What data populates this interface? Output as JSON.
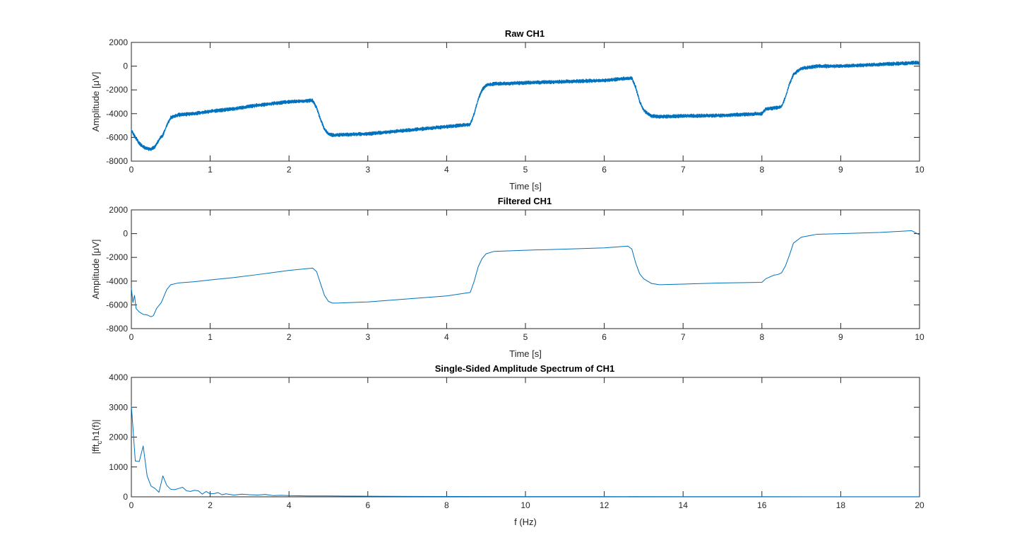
{
  "figure": {
    "background": "#ffffff",
    "line_color": "#0072bd",
    "axis_color": "#262626"
  },
  "chart_data": [
    {
      "type": "line",
      "title": "Raw CH1",
      "xlabel": "Time [s]",
      "ylabel": "Amplitude [μV]",
      "xlim": [
        0,
        10
      ],
      "ylim": [
        -8000,
        2000
      ],
      "xticks": [
        0,
        1,
        2,
        3,
        4,
        5,
        6,
        7,
        8,
        9,
        10
      ],
      "yticks": [
        2000,
        0,
        -2000,
        -4000,
        -6000,
        -8000
      ],
      "grid": false,
      "noise_amplitude": 160,
      "series": [
        {
          "x": [
            0,
            0.05,
            0.1,
            0.15,
            0.2,
            0.25,
            0.3,
            0.35,
            0.4,
            0.45,
            0.5,
            0.6,
            0.8,
            1.0,
            1.3,
            1.6,
            2.0,
            2.3,
            2.35,
            2.4,
            2.45,
            2.5,
            2.55,
            2.6,
            3.0,
            3.5,
            4.0,
            4.3,
            4.35,
            4.4,
            4.45,
            4.5,
            4.6,
            5.0,
            5.5,
            6.0,
            6.35,
            6.4,
            6.45,
            6.5,
            6.55,
            6.6,
            6.7,
            7.0,
            7.5,
            8.0,
            8.05,
            8.2,
            8.25,
            8.3,
            8.35,
            8.4,
            8.5,
            8.7,
            9.0,
            9.5,
            10.0
          ],
          "y": [
            -5400,
            -6000,
            -6500,
            -6800,
            -6950,
            -7000,
            -6800,
            -6200,
            -5800,
            -5000,
            -4300,
            -4100,
            -4000,
            -3800,
            -3600,
            -3300,
            -3000,
            -2900,
            -3500,
            -4500,
            -5300,
            -5700,
            -5800,
            -5800,
            -5700,
            -5400,
            -5100,
            -4900,
            -4000,
            -2800,
            -2000,
            -1600,
            -1500,
            -1400,
            -1300,
            -1200,
            -1000,
            -1800,
            -3000,
            -3700,
            -4000,
            -4200,
            -4250,
            -4200,
            -4150,
            -4000,
            -3600,
            -3500,
            -3400,
            -2600,
            -1500,
            -700,
            -200,
            0,
            0,
            150,
            300
          ]
        }
      ]
    },
    {
      "type": "line",
      "title": "Filtered CH1",
      "xlabel": "Time [s]",
      "ylabel": "Amplitude [μV]",
      "xlim": [
        0,
        10
      ],
      "ylim": [
        -8000,
        2000
      ],
      "xticks": [
        0,
        1,
        2,
        3,
        4,
        5,
        6,
        7,
        8,
        9,
        10
      ],
      "yticks": [
        2000,
        0,
        -2000,
        -4000,
        -6000,
        -8000
      ],
      "grid": false,
      "noise_amplitude": 0,
      "series": [
        {
          "x": [
            0,
            0.02,
            0.04,
            0.06,
            0.1,
            0.15,
            0.2,
            0.25,
            0.28,
            0.32,
            0.38,
            0.45,
            0.5,
            0.6,
            0.8,
            1.0,
            1.3,
            1.6,
            2.0,
            2.3,
            2.35,
            2.4,
            2.45,
            2.5,
            2.55,
            2.6,
            3.0,
            3.5,
            4.0,
            4.3,
            4.35,
            4.4,
            4.45,
            4.5,
            4.6,
            5.0,
            5.5,
            6.0,
            6.3,
            6.35,
            6.4,
            6.45,
            6.5,
            6.6,
            6.7,
            7.0,
            7.5,
            8.0,
            8.05,
            8.1,
            8.15,
            8.2,
            8.25,
            8.3,
            8.35,
            8.4,
            8.5,
            8.7,
            9.0,
            9.5,
            9.9,
            10.0
          ],
          "y": [
            -4600,
            -5800,
            -5200,
            -6300,
            -6600,
            -6800,
            -6850,
            -7000,
            -6900,
            -6300,
            -5800,
            -4700,
            -4300,
            -4150,
            -4050,
            -3900,
            -3700,
            -3450,
            -3100,
            -2900,
            -3200,
            -4200,
            -5200,
            -5700,
            -5850,
            -5850,
            -5750,
            -5500,
            -5250,
            -4950,
            -4000,
            -2800,
            -2100,
            -1700,
            -1500,
            -1400,
            -1300,
            -1200,
            -1050,
            -1300,
            -2500,
            -3400,
            -3800,
            -4200,
            -4300,
            -4250,
            -4150,
            -4100,
            -3800,
            -3650,
            -3500,
            -3450,
            -3300,
            -2700,
            -1800,
            -800,
            -300,
            -50,
            0,
            100,
            250,
            -100
          ]
        }
      ]
    },
    {
      "type": "line",
      "title": "Single-Sided Amplitude Spectrum of CH1",
      "xlabel": "f (Hz)",
      "ylabel": "|fft_ch1(f)|",
      "ylabel_parts": [
        "|fft",
        "c",
        "h1(f)|"
      ],
      "xlim": [
        0,
        20
      ],
      "ylim": [
        0,
        4000
      ],
      "xticks": [
        0,
        2,
        4,
        6,
        8,
        10,
        12,
        14,
        16,
        18,
        20
      ],
      "yticks": [
        4000,
        3000,
        2000,
        1000,
        0
      ],
      "grid": false,
      "noise_amplitude": 0,
      "series": [
        {
          "x": [
            0,
            0.1,
            0.2,
            0.3,
            0.4,
            0.5,
            0.6,
            0.7,
            0.8,
            0.9,
            1.0,
            1.1,
            1.2,
            1.3,
            1.4,
            1.5,
            1.6,
            1.7,
            1.8,
            1.9,
            2.0,
            2.1,
            2.2,
            2.3,
            2.4,
            2.5,
            2.6,
            2.8,
            3.0,
            3.2,
            3.4,
            3.6,
            3.8,
            4.0,
            4.5,
            5.0,
            5.5,
            6.0,
            7.0,
            8.0,
            10.0,
            12.0,
            14.0,
            16.0,
            18.0,
            20.0
          ],
          "y": [
            3050,
            1200,
            1180,
            1700,
            700,
            360,
            280,
            150,
            700,
            380,
            250,
            240,
            280,
            320,
            200,
            180,
            220,
            200,
            90,
            180,
            100,
            110,
            140,
            70,
            100,
            80,
            60,
            90,
            70,
            60,
            80,
            40,
            50,
            40,
            30,
            30,
            25,
            20,
            15,
            12,
            10,
            8,
            6,
            5,
            4,
            3
          ]
        }
      ]
    }
  ]
}
